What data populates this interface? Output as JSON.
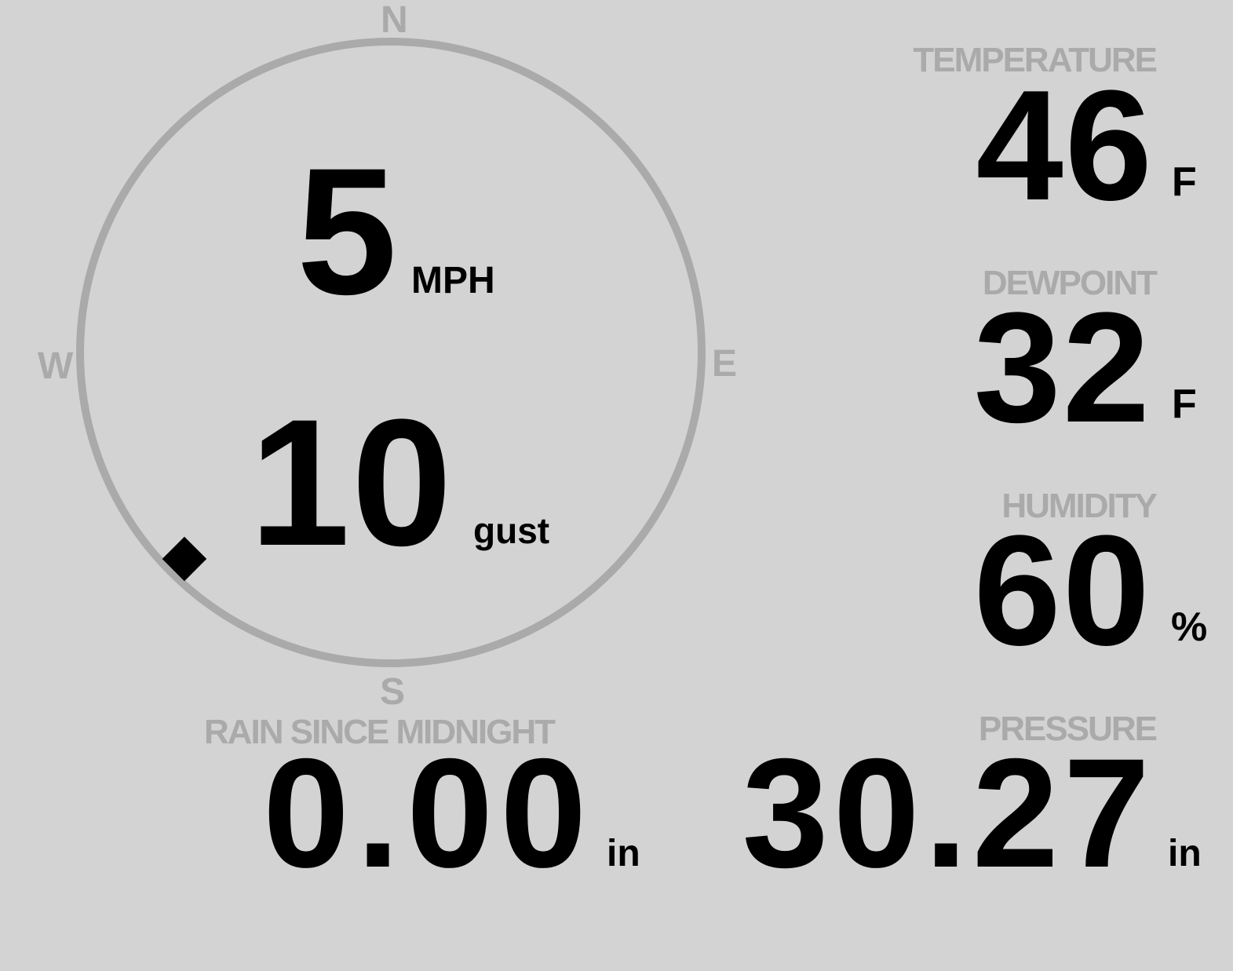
{
  "wind": {
    "speed": "5",
    "speed_unit": "MPH",
    "gust": "10",
    "gust_unit": "gust",
    "direction_degrees": 225,
    "compass": {
      "n": "N",
      "e": "E",
      "s": "S",
      "w": "W"
    }
  },
  "temperature": {
    "label": "TEMPERATURE",
    "value": "46",
    "unit": "F"
  },
  "dewpoint": {
    "label": "DEWPOINT",
    "value": "32",
    "unit": "F"
  },
  "humidity": {
    "label": "HUMIDITY",
    "value": "60",
    "unit": "%"
  },
  "rain": {
    "label": "RAIN SINCE MIDNIGHT",
    "value": "0.00",
    "unit": "in"
  },
  "pressure": {
    "label": "PRESSURE",
    "value": "30.27",
    "unit": "in"
  },
  "colors": {
    "background": "#d3d3d3",
    "label": "#aaaaaa",
    "value": "#000000",
    "ring": "#aaaaaa"
  }
}
